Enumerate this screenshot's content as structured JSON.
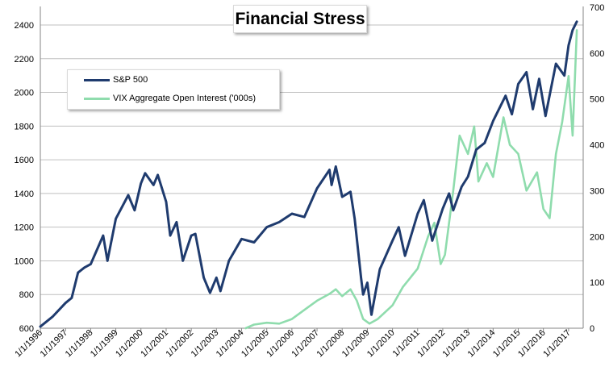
{
  "chart_data": {
    "type": "line",
    "title": "Financial Stress",
    "x_ticks": [
      "1/1/1996",
      "1/1/1997",
      "1/1/1998",
      "1/1/1999",
      "1/1/2000",
      "1/1/2001",
      "1/1/2002",
      "1/1/2003",
      "1/1/2004",
      "1/1/2005",
      "1/1/2006",
      "1/1/2007",
      "1/1/2008",
      "1/1/2009",
      "1/1/2010",
      "1/1/2011",
      "1/1/2012",
      "1/1/2013",
      "1/1/2014",
      "1/1/2015",
      "1/1/2016",
      "1/1/2017"
    ],
    "y_left": {
      "min": 600,
      "max": 2400,
      "ticks": [
        600,
        800,
        1000,
        1200,
        1400,
        1600,
        1800,
        2000,
        2200,
        2400
      ]
    },
    "y_right": {
      "min": 0,
      "max": 700,
      "ticks": [
        0,
        100,
        200,
        300,
        400,
        500,
        600,
        700
      ]
    },
    "grid": true,
    "legend_position": "upper-left",
    "series": [
      {
        "name": "S&P 500",
        "axis": "left",
        "color": "#1f3b6e",
        "points": [
          [
            "1996-01-01",
            610
          ],
          [
            "1996-07-01",
            670
          ],
          [
            "1997-01-01",
            750
          ],
          [
            "1997-04-01",
            780
          ],
          [
            "1997-07-01",
            930
          ],
          [
            "1997-10-01",
            960
          ],
          [
            "1998-01-01",
            980
          ],
          [
            "1998-07-01",
            1150
          ],
          [
            "1998-09-01",
            1000
          ],
          [
            "1999-01-01",
            1250
          ],
          [
            "1999-07-01",
            1390
          ],
          [
            "1999-10-01",
            1300
          ],
          [
            "2000-01-01",
            1460
          ],
          [
            "2000-03-01",
            1520
          ],
          [
            "2000-07-01",
            1450
          ],
          [
            "2000-09-01",
            1510
          ],
          [
            "2001-01-01",
            1350
          ],
          [
            "2001-03-01",
            1150
          ],
          [
            "2001-06-01",
            1230
          ],
          [
            "2001-09-01",
            1000
          ],
          [
            "2002-01-01",
            1150
          ],
          [
            "2002-03-01",
            1160
          ],
          [
            "2002-07-01",
            900
          ],
          [
            "2002-10-01",
            810
          ],
          [
            "2003-01-01",
            900
          ],
          [
            "2003-03-01",
            820
          ],
          [
            "2003-07-01",
            1000
          ],
          [
            "2004-01-01",
            1130
          ],
          [
            "2004-07-01",
            1110
          ],
          [
            "2005-01-01",
            1200
          ],
          [
            "2005-07-01",
            1230
          ],
          [
            "2006-01-01",
            1280
          ],
          [
            "2006-07-01",
            1260
          ],
          [
            "2007-01-01",
            1430
          ],
          [
            "2007-07-01",
            1540
          ],
          [
            "2007-08-01",
            1450
          ],
          [
            "2007-10-01",
            1560
          ],
          [
            "2008-01-01",
            1380
          ],
          [
            "2008-05-01",
            1410
          ],
          [
            "2008-07-01",
            1250
          ],
          [
            "2008-10-01",
            900
          ],
          [
            "2008-11-01",
            800
          ],
          [
            "2009-01-01",
            870
          ],
          [
            "2009-03-01",
            680
          ],
          [
            "2009-07-01",
            950
          ],
          [
            "2010-01-01",
            1120
          ],
          [
            "2010-04-01",
            1200
          ],
          [
            "2010-07-01",
            1030
          ],
          [
            "2011-01-01",
            1280
          ],
          [
            "2011-04-01",
            1360
          ],
          [
            "2011-08-01",
            1120
          ],
          [
            "2012-01-01",
            1310
          ],
          [
            "2012-04-01",
            1400
          ],
          [
            "2012-06-01",
            1300
          ],
          [
            "2012-10-01",
            1440
          ],
          [
            "2013-01-01",
            1500
          ],
          [
            "2013-05-01",
            1660
          ],
          [
            "2013-09-01",
            1700
          ],
          [
            "2014-01-01",
            1830
          ],
          [
            "2014-07-01",
            1980
          ],
          [
            "2014-10-01",
            1870
          ],
          [
            "2015-01-01",
            2050
          ],
          [
            "2015-05-01",
            2120
          ],
          [
            "2015-08-01",
            1900
          ],
          [
            "2015-11-01",
            2080
          ],
          [
            "2016-02-01",
            1860
          ],
          [
            "2016-07-01",
            2170
          ],
          [
            "2016-11-01",
            2100
          ],
          [
            "2017-01-01",
            2280
          ],
          [
            "2017-03-01",
            2370
          ],
          [
            "2017-05-01",
            2420
          ]
        ]
      },
      {
        "name": "VIX Aggregate Open Interest ('000s)",
        "axis": "right",
        "color": "#8fdcad",
        "points": [
          [
            "2004-03-01",
            0
          ],
          [
            "2004-07-01",
            8
          ],
          [
            "2005-01-01",
            12
          ],
          [
            "2005-07-01",
            10
          ],
          [
            "2006-01-01",
            20
          ],
          [
            "2006-07-01",
            40
          ],
          [
            "2007-01-01",
            60
          ],
          [
            "2007-07-01",
            75
          ],
          [
            "2007-10-01",
            85
          ],
          [
            "2008-01-01",
            70
          ],
          [
            "2008-05-01",
            85
          ],
          [
            "2008-08-01",
            60
          ],
          [
            "2008-11-01",
            20
          ],
          [
            "2009-02-01",
            10
          ],
          [
            "2009-06-01",
            20
          ],
          [
            "2010-01-01",
            50
          ],
          [
            "2010-06-01",
            90
          ],
          [
            "2011-01-01",
            130
          ],
          [
            "2011-06-01",
            200
          ],
          [
            "2011-09-01",
            230
          ],
          [
            "2011-12-01",
            140
          ],
          [
            "2012-02-01",
            160
          ],
          [
            "2012-06-01",
            300
          ],
          [
            "2012-09-01",
            420
          ],
          [
            "2013-01-01",
            380
          ],
          [
            "2013-04-01",
            440
          ],
          [
            "2013-06-01",
            320
          ],
          [
            "2013-10-01",
            360
          ],
          [
            "2014-01-01",
            330
          ],
          [
            "2014-06-01",
            460
          ],
          [
            "2014-09-01",
            400
          ],
          [
            "2015-01-01",
            380
          ],
          [
            "2015-05-01",
            300
          ],
          [
            "2015-10-01",
            340
          ],
          [
            "2016-01-01",
            260
          ],
          [
            "2016-04-01",
            240
          ],
          [
            "2016-07-01",
            380
          ],
          [
            "2016-10-01",
            450
          ],
          [
            "2017-01-01",
            550
          ],
          [
            "2017-03-01",
            420
          ],
          [
            "2017-05-01",
            650
          ]
        ]
      }
    ]
  }
}
